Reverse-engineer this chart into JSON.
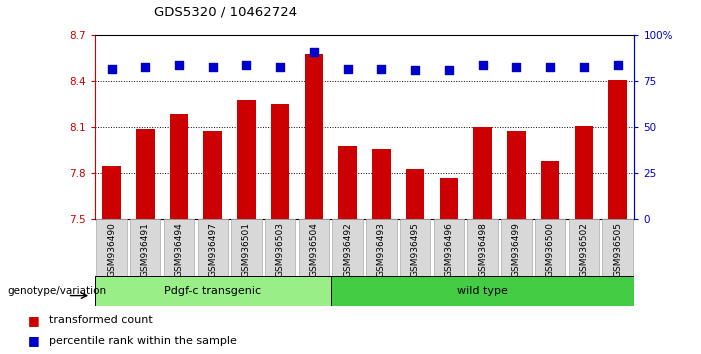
{
  "title": "GDS5320 / 10462724",
  "samples": [
    "GSM936490",
    "GSM936491",
    "GSM936494",
    "GSM936497",
    "GSM936501",
    "GSM936503",
    "GSM936504",
    "GSM936492",
    "GSM936493",
    "GSM936495",
    "GSM936496",
    "GSM936498",
    "GSM936499",
    "GSM936500",
    "GSM936502",
    "GSM936505"
  ],
  "bar_values": [
    7.85,
    8.09,
    8.19,
    8.08,
    8.28,
    8.25,
    8.58,
    7.98,
    7.96,
    7.83,
    7.77,
    8.1,
    8.08,
    7.88,
    8.11,
    8.41
  ],
  "percentile_values": [
    82,
    83,
    84,
    83,
    84,
    83,
    91,
    82,
    82,
    81,
    81,
    84,
    83,
    83,
    83,
    84
  ],
  "bar_color": "#cc0000",
  "dot_color": "#0000cc",
  "ylim_left": [
    7.5,
    8.7
  ],
  "ylim_right": [
    0,
    100
  ],
  "yticks_left": [
    7.5,
    7.8,
    8.1,
    8.4,
    8.7
  ],
  "yticks_right": [
    0,
    25,
    50,
    75,
    100
  ],
  "ytick_labels_right": [
    "0",
    "25",
    "50",
    "75",
    "100%"
  ],
  "grid_values": [
    7.8,
    8.1,
    8.4
  ],
  "groups": [
    {
      "label": "Pdgf-c transgenic",
      "start": 0,
      "end": 6,
      "color": "#99ee88"
    },
    {
      "label": "wild type",
      "start": 7,
      "end": 15,
      "color": "#44cc44"
    }
  ],
  "group_label": "genotype/variation",
  "legend": [
    {
      "color": "#cc0000",
      "label": "transformed count"
    },
    {
      "color": "#0000cc",
      "label": "percentile rank within the sample"
    }
  ],
  "background_color": "#ffffff",
  "bar_width": 0.55,
  "dot_size": 30
}
